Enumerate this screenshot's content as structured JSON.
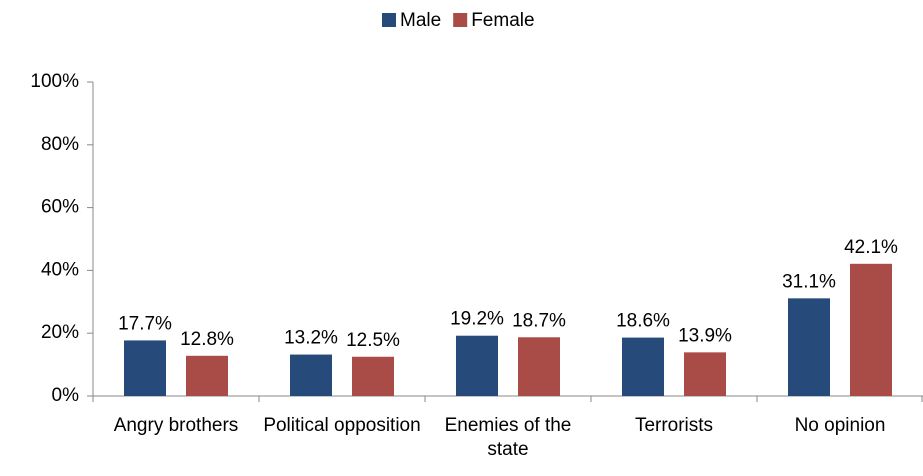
{
  "chart_data": {
    "type": "bar",
    "categories": [
      "Angry brothers",
      "Political opposition",
      "Enemies of the state",
      "Terrorists",
      "No opinion"
    ],
    "series": [
      {
        "name": "Male",
        "color": "#264b7a",
        "values": [
          17.7,
          13.2,
          19.2,
          18.6,
          31.1
        ],
        "value_labels": [
          "17.7%",
          "13.2%",
          "19.2%",
          "18.6%",
          "31.1%"
        ]
      },
      {
        "name": "Female",
        "color": "#a94c47",
        "values": [
          12.8,
          12.5,
          18.7,
          13.9,
          42.1
        ],
        "value_labels": [
          "12.8%",
          "12.5%",
          "18.7%",
          "13.9%",
          "42.1%"
        ]
      }
    ],
    "ylim": [
      0,
      100
    ],
    "yticks": [
      {
        "value": 0,
        "label": "0%"
      },
      {
        "value": 20,
        "label": "20%"
      },
      {
        "value": 40,
        "label": "40%"
      },
      {
        "value": 60,
        "label": "60%"
      },
      {
        "value": 80,
        "label": "80%"
      },
      {
        "value": 100,
        "label": "100%"
      }
    ],
    "legend": "top"
  }
}
